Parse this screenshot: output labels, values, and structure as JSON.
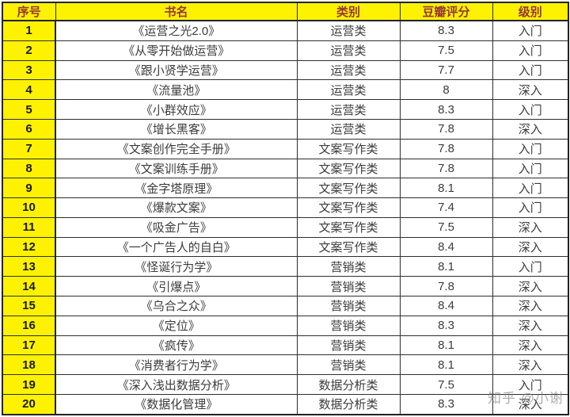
{
  "watermark": {
    "text": "知乎 @小谢"
  },
  "colors": {
    "header_bg": "#FEF200",
    "header_text": "#953735",
    "index_bg": "#FEF200",
    "index_text": "#1B1B1B",
    "body_text": "#3C3C3C",
    "border": "#2E2E2E",
    "watermark_text": "#7D7D7D"
  },
  "chart_data": {
    "type": "table",
    "columns": [
      "序号",
      "书名",
      "类别",
      "豆瓣评分",
      "级别"
    ],
    "rows": [
      {
        "index": "1",
        "title": "《运营之光2.0》",
        "category": "运营类",
        "rating": "8.3",
        "level": "入门"
      },
      {
        "index": "2",
        "title": "《从零开始做运营》",
        "category": "运营类",
        "rating": "7.5",
        "level": "入门"
      },
      {
        "index": "3",
        "title": "《跟小贤学运营》",
        "category": "运营类",
        "rating": "7.7",
        "level": "入门"
      },
      {
        "index": "4",
        "title": "《流量池》",
        "category": "运营类",
        "rating": "8",
        "level": "深入"
      },
      {
        "index": "5",
        "title": "《小群效应》",
        "category": "运营类",
        "rating": "8.3",
        "level": "入门"
      },
      {
        "index": "6",
        "title": "《增长黑客》",
        "category": "运营类",
        "rating": "7.8",
        "level": "深入"
      },
      {
        "index": "7",
        "title": "《文案创作完全手册》",
        "category": "文案写作类",
        "rating": "7.8",
        "level": "入门"
      },
      {
        "index": "8",
        "title": "《文案训练手册》",
        "category": "文案写作类",
        "rating": "7.8",
        "level": "入门"
      },
      {
        "index": "9",
        "title": "《金字塔原理》",
        "category": "文案写作类",
        "rating": "8.1",
        "level": "入门"
      },
      {
        "index": "10",
        "title": "《爆款文案》",
        "category": "文案写作类",
        "rating": "7.4",
        "level": "入门"
      },
      {
        "index": "11",
        "title": "《吸金广告》",
        "category": "文案写作类",
        "rating": "7.5",
        "level": "深入"
      },
      {
        "index": "12",
        "title": "《一个广告人的自白》",
        "category": "文案写作类",
        "rating": "8.4",
        "level": "深入"
      },
      {
        "index": "13",
        "title": "《怪诞行为学》",
        "category": "营销类",
        "rating": "8.1",
        "level": "入门"
      },
      {
        "index": "14",
        "title": "《引爆点》",
        "category": "营销类",
        "rating": "7.8",
        "level": "深入"
      },
      {
        "index": "15",
        "title": "《乌合之众》",
        "category": "营销类",
        "rating": "8.4",
        "level": "深入"
      },
      {
        "index": "16",
        "title": "《定位》",
        "category": "营销类",
        "rating": "8.3",
        "level": "深入"
      },
      {
        "index": "17",
        "title": "《疯传》",
        "category": "营销类",
        "rating": "8.1",
        "level": "深入"
      },
      {
        "index": "18",
        "title": "《消费者行为学》",
        "category": "营销类",
        "rating": "8.1",
        "level": "深入"
      },
      {
        "index": "19",
        "title": "《深入浅出数据分析》",
        "category": "数据分析类",
        "rating": "7.5",
        "level": "入门"
      },
      {
        "index": "20",
        "title": "《数据化管理》",
        "category": "数据分析类",
        "rating": "8.3",
        "level": "深入"
      }
    ]
  }
}
